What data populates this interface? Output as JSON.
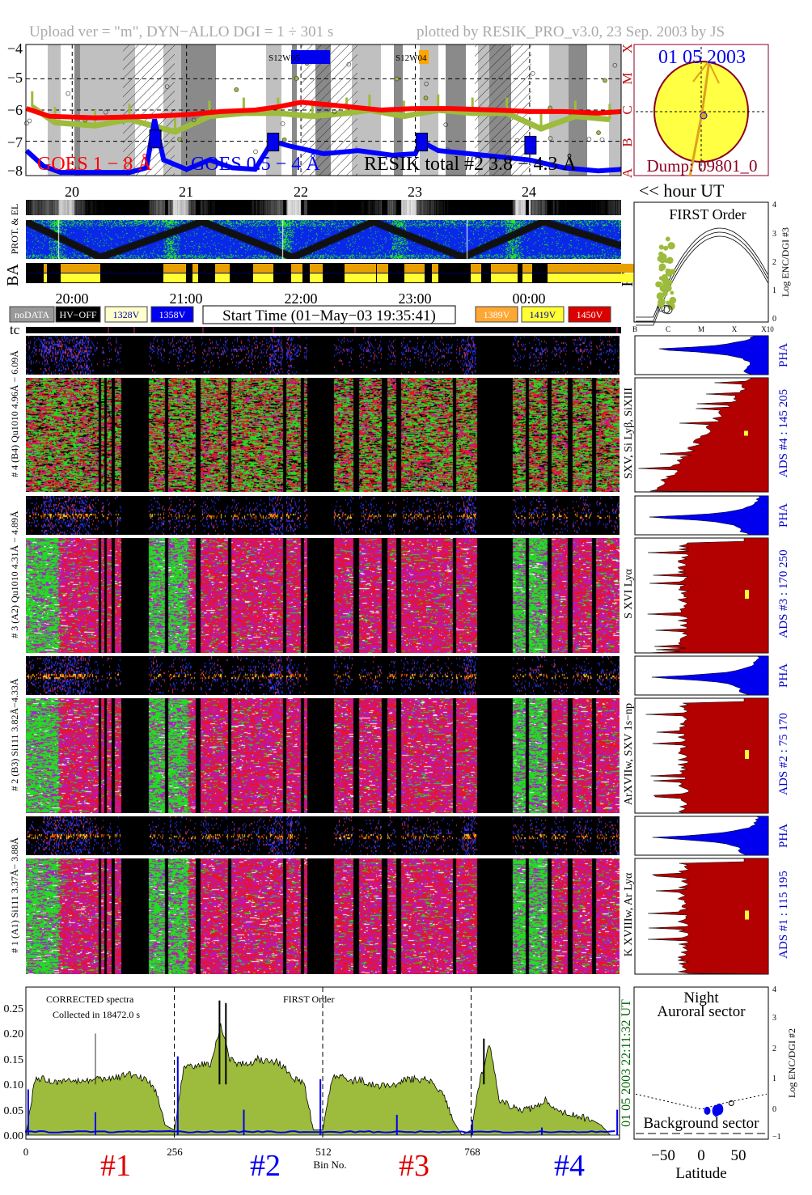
{
  "header": {
    "left": "Upload ver = \"m\", DYN−ALLO DGI =   1 ÷ 301 s",
    "right": "plotted by RESIK_PRO_v3.0, 23 Sep. 2003 by JS"
  },
  "colors": {
    "goes_long": "#ff0000",
    "goes_short": "#0000ff",
    "resik": "#9dbb3c",
    "sun": "#ffff44",
    "sun_border": "#8b0022",
    "red_hist": "#b30000",
    "pha": "#0000ee",
    "label_blue": "#0000cc",
    "date_green": "#006600"
  },
  "lightcurve": {
    "legend_goes_long": "GOES 1 − 8 Å",
    "legend_goes_short": "GOES 0.5 − 4 Å",
    "legend_resik": "RESIK total #2  3.8 − 4.3 Å",
    "region_1": "S12W05",
    "region_2": "S12W04",
    "y_ticks": [
      "−4",
      "−5",
      "−6",
      "−7",
      "−8"
    ],
    "class_labels": [
      "X",
      "M",
      "C",
      "B",
      "A"
    ]
  },
  "sun": {
    "date": "01 05 2003",
    "dump": "Dump: 09801_0"
  },
  "hours": {
    "ticks": [
      "20",
      "21",
      "22",
      "23",
      "24"
    ],
    "unit_label": "<< hour UT"
  },
  "strips": {
    "prot_label": "PROT. & EL",
    "ba_label": "BA",
    "hv_label": "HV",
    "tc_label": "tc"
  },
  "times": [
    "20:00",
    "21:00",
    "22:00",
    "23:00",
    "00:00"
  ],
  "hv_legend": [
    {
      "label": "noDATA",
      "bg": "#999999",
      "fg": "#ffffff"
    },
    {
      "label": "HV−OFF",
      "bg": "#000000",
      "fg": "#ffffff"
    },
    {
      "label": "1328V",
      "bg": "#ffffcc",
      "fg": "#0000aa"
    },
    {
      "label": "1358V",
      "bg": "#0000ee",
      "fg": "#ffffff"
    },
    {
      "label": "1389V",
      "bg": "#ffa733",
      "fg": "#ffffff"
    },
    {
      "label": "1419V",
      "bg": "#ffff33",
      "fg": "#0000aa"
    },
    {
      "label": "1450V",
      "bg": "#dd0000",
      "fg": "#ffffff"
    }
  ],
  "start_time": "Start Time (01−May−03 19:35:41)",
  "first_order_panel": {
    "title": "FIRST Order",
    "y_label": "Log ENC/DGI #3",
    "y_ticks": [
      "0",
      "1",
      "2",
      "3",
      "4"
    ],
    "x_ticks": [
      "B",
      "C",
      "M",
      "X",
      "X10"
    ]
  },
  "channels": [
    {
      "left_label": "# 4 (B4) Qu1010 4.96Å − 6.09Å",
      "line_label": "SXV, Si Lyβ, SiXIII",
      "ads_label": "ADS #4 :  145 205",
      "pha_label": "PHA"
    },
    {
      "left_label": "# 3 (A2) Qu1010 4.31Å − 4.89Å",
      "line_label": "S XVI Lyα",
      "ads_label": "ADS #3 :  170 250",
      "pha_label": "PHA"
    },
    {
      "left_label": "# 2 (B3) Si111 3.82Å−4.33Å",
      "line_label": "ArXVIIw, SXV 1s−np",
      "ads_label": "ADS #2 :  75 170",
      "pha_label": "PHA"
    },
    {
      "left_label": "# 1 (A1) Si111 3.37Å− 3.88Å",
      "line_label": "K XVIIIw, Ar Lyα",
      "ads_label": "ADS #1 :  115 195",
      "pha_label": "PHA"
    }
  ],
  "spectrum": {
    "note_1": "CORRECTED spectra",
    "note_2": "Collected in  18472.0 s",
    "note_3": "FIRST Order",
    "x_label": "Bin No.",
    "x_ticks": [
      "0",
      "256",
      "512",
      "768"
    ],
    "y_ticks": [
      "0.00",
      "0.05",
      "0.10",
      "0.15",
      "0.20",
      "0.25"
    ],
    "date_stamp": "01 05 2003   22:11:32 UT",
    "segments": [
      {
        "label": "#1",
        "color": "#dd0000"
      },
      {
        "label": "#2",
        "color": "#0000ee"
      },
      {
        "label": "#3",
        "color": "#dd0000"
      },
      {
        "label": "#4",
        "color": "#0000ee"
      }
    ]
  },
  "latitude_panel": {
    "top_1": "Night",
    "top_2": "Auroral sector",
    "bottom": "Background sector",
    "x_label": "Latitude",
    "x_ticks": [
      "−50",
      "0",
      "50"
    ],
    "y_label": "Log ENC/DGI #2",
    "y_ticks": [
      "−1",
      "0",
      "1",
      "2",
      "3",
      "4"
    ]
  },
  "chart_data": [
    {
      "type": "line",
      "title": "",
      "xlabel": "hour UT",
      "ylabel": "",
      "xlim": [
        19.595,
        24.8
      ],
      "ylim": [
        -8.1,
        -3.9
      ],
      "grid": true,
      "series": [
        {
          "name": "GOES 1 − 8 Å",
          "x": [
            19.6,
            19.8,
            20.2,
            20.7,
            21.0,
            21.3,
            21.6,
            21.8,
            22.0,
            22.3,
            22.7,
            23.0,
            23.3,
            23.7,
            24.0,
            24.3,
            24.6,
            24.8
          ],
          "y": [
            -5.95,
            -6.2,
            -6.25,
            -6.2,
            -6.15,
            -6.05,
            -6.0,
            -5.9,
            -5.75,
            -5.85,
            -6.0,
            -5.95,
            -5.95,
            -6.0,
            -6.05,
            -6.05,
            -6.1,
            -6.05
          ]
        },
        {
          "name": "GOES 0.5 − 4 Å",
          "x": [
            19.6,
            19.75,
            19.9,
            20.5,
            20.65,
            20.72,
            20.8,
            21.0,
            21.2,
            21.4,
            21.6,
            21.75,
            21.9,
            22.2,
            22.5,
            22.8,
            23.0,
            23.05,
            23.2,
            23.6,
            24.0,
            24.3,
            24.6,
            24.8
          ],
          "y": [
            -7.3,
            -7.8,
            -8.0,
            -8.0,
            -7.85,
            -6.3,
            -7.6,
            -7.9,
            -7.6,
            -7.85,
            -7.9,
            -7.0,
            -7.15,
            -7.4,
            -7.3,
            -7.45,
            -7.4,
            -7.0,
            -7.3,
            -7.45,
            -7.6,
            -7.85,
            -7.95,
            -7.9
          ]
        },
        {
          "name": "RESIK total #2  3.8 − 4.3 Å",
          "x": [
            19.65,
            19.85,
            20.2,
            20.5,
            20.9,
            21.2,
            21.5,
            21.8,
            22.1,
            22.4,
            22.6,
            22.9,
            23.2,
            23.5,
            23.8,
            24.1,
            24.4,
            24.7
          ],
          "y": [
            -5.9,
            -6.4,
            -6.5,
            -6.3,
            -6.7,
            -6.2,
            -6.1,
            -6.1,
            -6.2,
            -6.1,
            -6.0,
            -6.2,
            -6.0,
            -6.1,
            -6.1,
            -6.6,
            -6.2,
            -6.3
          ]
        }
      ]
    },
    {
      "type": "area",
      "title": "",
      "xlabel": "Bin No.",
      "ylabel": "",
      "xlim": [
        0,
        1024
      ],
      "ylim": [
        0,
        0.28
      ],
      "bin_step": 16,
      "series": [
        {
          "name": "",
          "values": [
            0.0,
            0.11,
            0.11,
            0.105,
            0.105,
            0.105,
            0.105,
            0.11,
            0.11,
            0.11,
            0.115,
            0.12,
            0.115,
            0.11,
            0.09,
            0.02,
            0.01,
            0.13,
            0.135,
            0.14,
            0.14,
            0.22,
            0.15,
            0.14,
            0.14,
            0.15,
            0.145,
            0.145,
            0.13,
            0.11,
            0.1,
            0.01,
            0.01,
            0.11,
            0.12,
            0.105,
            0.11,
            0.1,
            0.095,
            0.1,
            0.1,
            0.11,
            0.11,
            0.11,
            0.1,
            0.08,
            0.03,
            0.0,
            0.01,
            0.11,
            0.18,
            0.07,
            0.06,
            0.05,
            0.05,
            0.055,
            0.07,
            0.05,
            0.045,
            0.04,
            0.035,
            0.03,
            0.02,
            0.0
          ]
        },
        {
          "name": "",
          "spikes": [
            [
              120,
              0.2
            ],
            [
              334,
              0.265
            ],
            [
              345,
              0.26
            ],
            [
              790,
              0.19
            ]
          ]
        },
        {
          "name": "",
          "baseline": 0.005,
          "spikes": [
            [
              4,
              0.09
            ],
            [
              120,
              0.045
            ],
            [
              262,
              0.155
            ],
            [
              376,
              0.05
            ],
            [
              508,
              0.11
            ],
            [
              640,
              0.04
            ],
            [
              770,
              0.03
            ],
            [
              890,
              0.015
            ],
            [
              1020,
              0.05
            ]
          ]
        }
      ]
    },
    {
      "type": "scatter",
      "xlabel": "Latitude",
      "ylabel": "Log ENC/DGI #2",
      "xlim": [
        -90,
        90
      ],
      "ylim": [
        -1,
        4
      ],
      "series": [
        {
          "name": "",
          "x": [
            8,
            20,
            24
          ],
          "y": [
            -0.05,
            -0.05,
            0.0
          ]
        }
      ]
    }
  ]
}
